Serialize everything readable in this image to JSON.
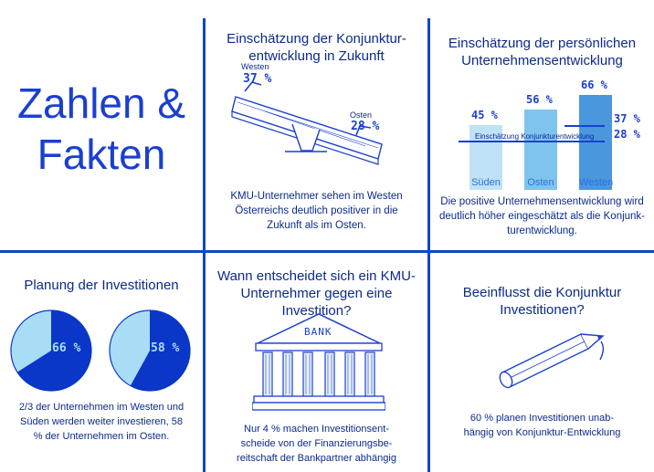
{
  "title_block": {
    "line1": "Zahlen &",
    "line2": "Fakten"
  },
  "forecast": {
    "heading_line1": "Einschätzung der Konjunktur-",
    "heading_line2": "entwicklung in Zukunft",
    "west_label": "Westen",
    "west_value": "37 %",
    "east_label": "Osten",
    "east_value": "28 %",
    "text_line1": "KMU-Unternehmer sehen im Westen",
    "text_line2": "Österreichs deutlich positiver in die",
    "text_line3": "Zukunft als im Osten."
  },
  "business": {
    "heading_line1": "Einschätzung der persönlichen",
    "heading_line2": "Unternehmensentwicklung",
    "line_label": "Einschätzung Konjunkturentwicklung",
    "line_value_west": "37 %",
    "line_value_east": "28 %",
    "text_line1": "Die positive Unternehmensentwicklung wird",
    "text_line2": "deutlich höher eingeschätzt als die Konjunk-",
    "text_line3": "turentwicklung."
  },
  "chart_data": {
    "type": "bar",
    "categories": [
      "Süden",
      "Osten",
      "Westen"
    ],
    "values": [
      45,
      56,
      66
    ],
    "value_labels": [
      "45 %",
      "56 %",
      "66 %"
    ],
    "colors": [
      "#bfe2f6",
      "#7fc4ee",
      "#4a97de"
    ],
    "reference_lines": [
      {
        "label": "Einschätzung Konjunkturentwicklung",
        "values": [
          37,
          28
        ]
      }
    ],
    "ylim": [
      0,
      70
    ]
  },
  "planning": {
    "heading": "Planung der Investitionen",
    "pie1_value": 66,
    "pie1_label": "66 %",
    "pie2_value": 58,
    "pie2_label": "58 %",
    "text_line1": "2/3 der Unternehmen im Westen und",
    "text_line2": "Süden werden weiter investieren, 58",
    "text_line3": "% der Unternehmen im Osten."
  },
  "decision": {
    "heading_line1": "Wann entscheidet sich ein KMU-",
    "heading_line2": "Unternehmer gegen eine Investition?",
    "bank_sign": "BANK",
    "text_line1": "Nur 4 % machen Investitionsent-",
    "text_line2": "scheide von der Finanzierungsbe-",
    "text_line3": "reitschaft der Bankpartner abhängig"
  },
  "influence": {
    "heading_line1": "Beeinflusst die Konjunktur",
    "heading_line2": "Investitionen?",
    "text_line1": "60 % planen Investitionen unab-",
    "text_line2": "hängig von Konjunktur-Entwicklung"
  },
  "colors": {
    "accent": "#1344c9",
    "text": "#0b2a8c",
    "pie_dark": "#0a37c8",
    "pie_light": "#a9ddf5"
  }
}
